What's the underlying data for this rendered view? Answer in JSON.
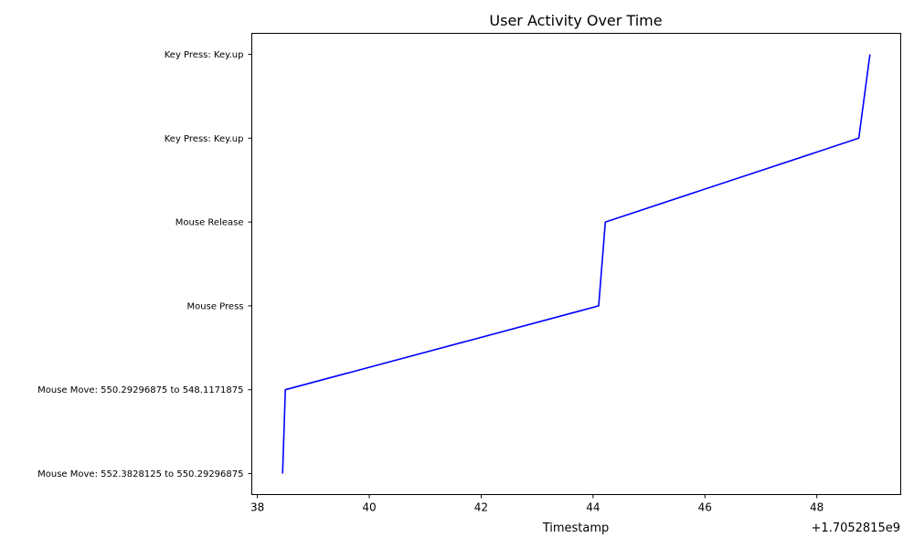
{
  "chart_data": {
    "type": "line",
    "title": "User Activity Over Time",
    "xlabel": "Timestamp",
    "ylabel": "",
    "x_offset_label": "+1.7052815e9",
    "x_ticks": [
      38,
      40,
      42,
      44,
      46,
      48
    ],
    "x_tick_labels": [
      "38",
      "40",
      "42",
      "44",
      "46",
      "48"
    ],
    "xlim": [
      37.9,
      49.5
    ],
    "y_tick_labels": [
      "Mouse Move: 552.3828125 to 550.29296875",
      "Mouse Move: 550.29296875 to 548.1171875",
      "Mouse Press",
      "Mouse Release",
      "Key Press: Key.up",
      "Key Press: Key.up"
    ],
    "ylim": [
      -0.25,
      5.25
    ],
    "series": [
      {
        "color": "#0000ff",
        "x": [
          38.45,
          38.5,
          44.1,
          44.22,
          48.75,
          48.95
        ],
        "y": [
          0,
          1,
          2,
          3,
          4,
          5
        ]
      }
    ],
    "grid": false
  }
}
